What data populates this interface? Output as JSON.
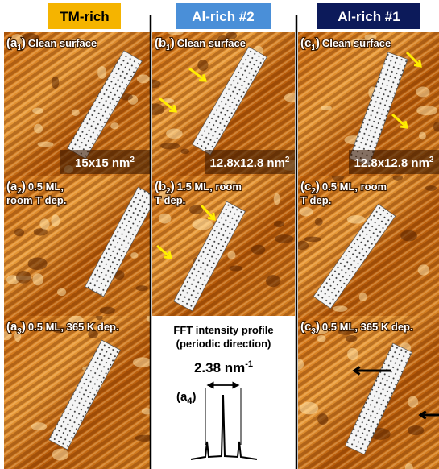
{
  "headers": [
    "TM-rich",
    "Al-rich #2",
    "Al-rich #1"
  ],
  "panels": [
    {
      "id_main": "(a",
      "id_sub": "1",
      "id_end": ")",
      "caption": [
        "Clean surface"
      ],
      "scale": "15x15 nm",
      "scale_sup": "2"
    },
    {
      "id_main": "(b",
      "id_sub": "1",
      "id_end": ")",
      "caption": [
        "Clean surface"
      ],
      "scale": "12.8x12.8 nm",
      "scale_sup": "2"
    },
    {
      "id_main": "(c",
      "id_sub": "1",
      "id_end": ")",
      "caption": [
        "Clean surface"
      ],
      "scale": "12.8x12.8 nm",
      "scale_sup": "2"
    },
    {
      "id_main": "(a",
      "id_sub": "2",
      "id_end": ")",
      "caption": [
        "0.5 ML,",
        "room T dep."
      ]
    },
    {
      "id_main": "(b",
      "id_sub": "2",
      "id_end": ")",
      "caption": [
        "1.5 ML, room",
        "T dep."
      ]
    },
    {
      "id_main": "(c",
      "id_sub": "2",
      "id_end": ")",
      "caption": [
        "0.5 ML, room",
        "T dep."
      ]
    },
    {
      "id_main": "(a",
      "id_sub": "3",
      "id_end": ")",
      "caption": [
        "0.5 ML, 365 K dep."
      ]
    },
    {
      "fft_title": [
        "FFT intensity profile",
        "(periodic direction)"
      ],
      "fft_value": "2.38 nm",
      "fft_sup": "-1",
      "id_main": "(a",
      "id_sub": "4",
      "id_end": ")"
    },
    {
      "id_main": "(c",
      "id_sub": "3",
      "id_end": ")",
      "caption": [
        "0.5 ML, 365 K dep."
      ]
    }
  ]
}
